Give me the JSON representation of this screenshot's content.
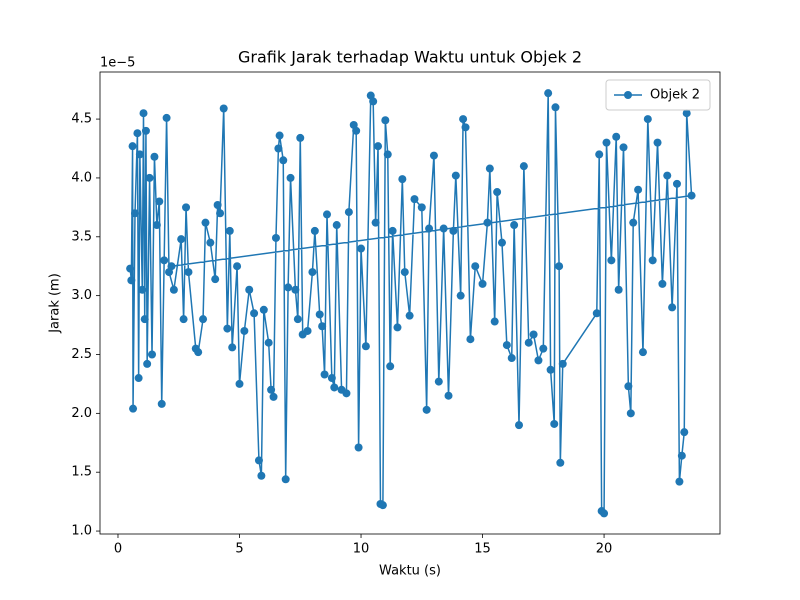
{
  "chart_data": {
    "type": "line",
    "title": "Grafik Jarak terhadap Waktu untuk Objek 2",
    "x_label": "Waktu (s)",
    "y_label": "Jarak (m)",
    "y_offset_label": "1e−5",
    "legend_position": "upper right",
    "marker": "circle",
    "xlim": [
      -0.74,
      24.77
    ],
    "ylim": [
      0.975,
      4.9
    ],
    "xticks": [
      0,
      5,
      10,
      15,
      20
    ],
    "yticks": [
      {
        "value": 1.0,
        "label": "1.0"
      },
      1.5,
      {
        "value": 2.0,
        "label": "2.0"
      },
      2.5,
      {
        "value": 3.0,
        "label": "3.0"
      },
      3.5,
      {
        "value": 4.0,
        "label": "4.0"
      },
      4.5
    ],
    "series": [
      {
        "name": "Objek 2",
        "color": "#1f77b4",
        "x": [
          0.5,
          0.55,
          0.6,
          0.62,
          0.7,
          0.8,
          0.85,
          0.9,
          1.0,
          1.05,
          1.1,
          1.15,
          1.2,
          1.3,
          1.4,
          1.5,
          1.6,
          1.7,
          1.8,
          1.9,
          2.0,
          2.1,
          2.3,
          2.6,
          2.7,
          2.8,
          2.9,
          3.2,
          3.3,
          3.5,
          3.6,
          3.8,
          4.0,
          4.1,
          4.2,
          4.35,
          4.5,
          4.6,
          4.7,
          4.9,
          5.0,
          5.2,
          5.4,
          5.6,
          5.8,
          5.9,
          6.0,
          6.2,
          6.3,
          6.4,
          6.5,
          6.6,
          6.65,
          6.8,
          6.9,
          7.0,
          7.1,
          7.3,
          7.4,
          7.5,
          7.6,
          7.8,
          8.0,
          8.1,
          8.3,
          8.4,
          8.5,
          8.6,
          8.8,
          8.9,
          9.0,
          9.2,
          9.4,
          9.5,
          9.7,
          9.8,
          9.9,
          10.0,
          10.2,
          10.4,
          10.5,
          10.6,
          10.7,
          10.8,
          10.9,
          11.0,
          11.1,
          11.2,
          11.3,
          11.5,
          11.7,
          11.8,
          12.0,
          12.2,
          12.5,
          12.7,
          12.8,
          13.0,
          13.2,
          13.4,
          13.6,
          13.8,
          13.9,
          14.1,
          14.2,
          14.3,
          14.5,
          14.7,
          15.0,
          15.2,
          15.3,
          15.5,
          15.6,
          15.8,
          16.0,
          16.2,
          16.3,
          16.5,
          16.7,
          16.9,
          17.1,
          17.3,
          17.5,
          17.7,
          17.8,
          17.95,
          18.0,
          18.15,
          18.2,
          18.3,
          19.7,
          19.8,
          19.9,
          20.0,
          20.1,
          20.3,
          20.5,
          20.6,
          20.8,
          21.0,
          21.1,
          21.2,
          21.4,
          21.6,
          21.8,
          22.0,
          22.2,
          22.4,
          22.6,
          22.8,
          23.0,
          23.1,
          23.2,
          23.3,
          23.4,
          23.6,
          2.2
        ],
        "values": [
          3.23,
          3.13,
          4.27,
          2.04,
          3.7,
          4.38,
          2.3,
          4.2,
          3.05,
          4.55,
          2.8,
          4.4,
          2.42,
          4.0,
          2.5,
          4.18,
          3.6,
          3.8,
          2.08,
          3.3,
          4.51,
          3.2,
          3.05,
          3.48,
          2.8,
          3.75,
          3.2,
          2.55,
          2.52,
          2.8,
          3.62,
          3.45,
          3.14,
          3.77,
          3.7,
          4.59,
          2.72,
          3.55,
          2.56,
          3.25,
          2.25,
          2.7,
          3.05,
          2.85,
          1.6,
          1.47,
          2.88,
          2.6,
          2.2,
          2.14,
          3.49,
          4.25,
          4.36,
          4.15,
          1.44,
          3.07,
          4.0,
          3.05,
          2.8,
          4.34,
          2.67,
          2.7,
          3.2,
          3.55,
          2.84,
          2.74,
          2.33,
          3.69,
          2.3,
          2.22,
          3.6,
          2.2,
          2.17,
          3.71,
          4.45,
          4.4,
          1.71,
          3.4,
          2.57,
          4.7,
          4.65,
          3.62,
          4.27,
          1.23,
          1.22,
          4.49,
          4.2,
          2.4,
          3.55,
          2.73,
          3.99,
          3.2,
          2.83,
          3.82,
          3.75,
          2.03,
          3.57,
          4.19,
          2.27,
          3.57,
          2.15,
          3.55,
          4.02,
          3.0,
          4.5,
          4.43,
          2.63,
          3.25,
          3.1,
          3.62,
          4.08,
          2.78,
          3.88,
          3.45,
          2.58,
          2.47,
          3.6,
          1.9,
          4.1,
          2.6,
          2.67,
          2.45,
          2.55,
          4.72,
          2.37,
          1.91,
          4.6,
          3.25,
          1.58,
          2.42,
          2.85,
          4.2,
          1.17,
          1.15,
          4.3,
          3.3,
          4.35,
          3.05,
          4.26,
          2.23,
          2.0,
          3.62,
          3.9,
          2.52,
          4.5,
          3.3,
          4.3,
          3.1,
          4.02,
          2.9,
          3.95,
          1.42,
          1.64,
          1.84,
          4.55,
          3.85,
          3.25
        ]
      }
    ]
  }
}
